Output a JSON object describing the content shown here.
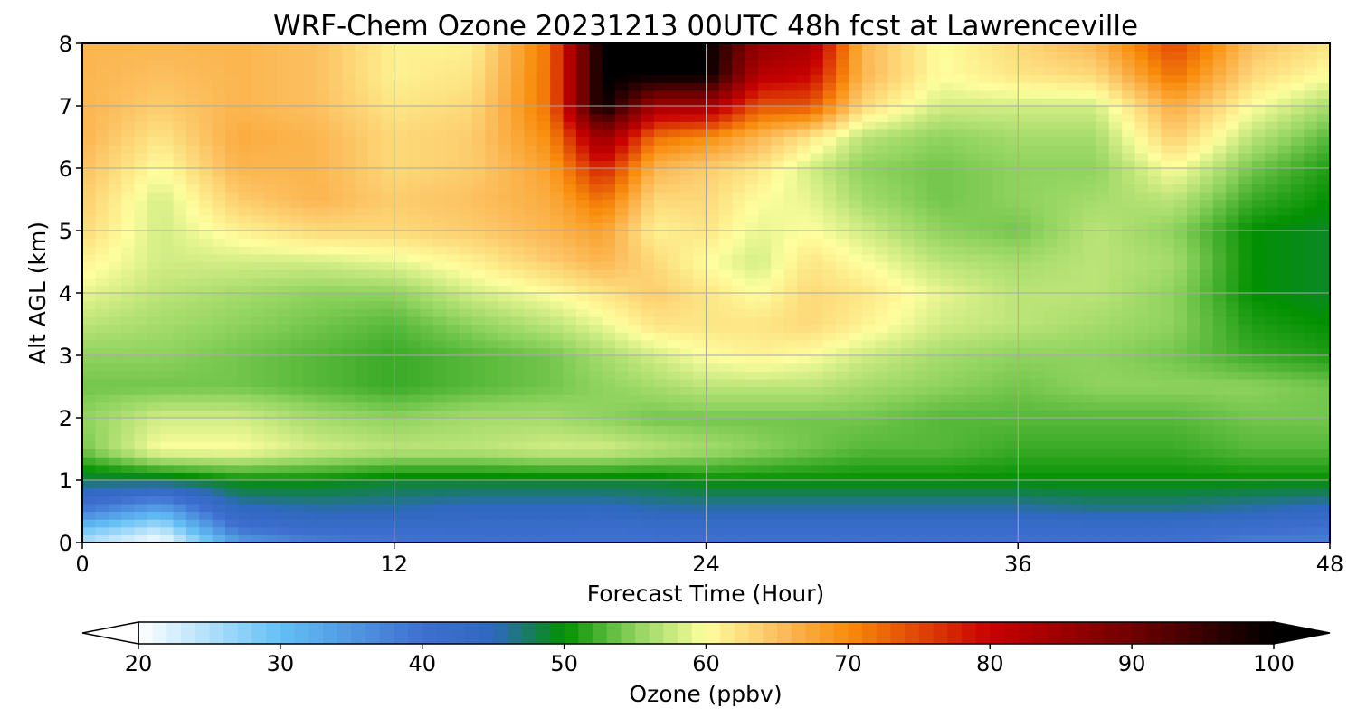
{
  "chart_data": {
    "type": "heatmap",
    "title": "WRF-Chem Ozone  20231213 00UTC 48h fcst at Lawrenceville",
    "xlabel": "Forecast Time (Hour)",
    "ylabel": "Alt AGL (km)",
    "xlim": [
      0,
      48
    ],
    "ylim": [
      0,
      8
    ],
    "x_ticks": [
      0,
      12,
      24,
      36,
      48
    ],
    "y_ticks": [
      0,
      1,
      2,
      3,
      4,
      5,
      6,
      7,
      8
    ],
    "grid": true,
    "x_hours": [
      0,
      3,
      6,
      9,
      12,
      15,
      18,
      20,
      22,
      24,
      26,
      28,
      30,
      33,
      36,
      39,
      42,
      45,
      48
    ],
    "z_km": [
      0,
      0.25,
      0.5,
      1,
      1.5,
      2,
      2.5,
      3,
      3.5,
      4,
      4.5,
      5,
      5.5,
      6,
      6.5,
      7,
      7.5,
      8
    ],
    "ozone_ppbv": [
      [
        25,
        20,
        34,
        38,
        39,
        40,
        40,
        40,
        40,
        40,
        40,
        40,
        40,
        40,
        40,
        40,
        40,
        38,
        38
      ],
      [
        30,
        25,
        40,
        42,
        42,
        42,
        42,
        41,
        42,
        42,
        42,
        42,
        42,
        42,
        42,
        42,
        42,
        41,
        40
      ],
      [
        38,
        32,
        44,
        45,
        45,
        44,
        44,
        44,
        45,
        45,
        45,
        45,
        45,
        45,
        45,
        46,
        46,
        45,
        44
      ],
      [
        48,
        48,
        50,
        50,
        49,
        49,
        49,
        49,
        49,
        50,
        50,
        50,
        50,
        50,
        50,
        50,
        50,
        50,
        50
      ],
      [
        54,
        60,
        60,
        58,
        57,
        57,
        58,
        58,
        57,
        56,
        55,
        54,
        53,
        53,
        52,
        52,
        52,
        53,
        53
      ],
      [
        55,
        58,
        58,
        56,
        55,
        56,
        56,
        55,
        54,
        54,
        54,
        54,
        54,
        53,
        53,
        53,
        53,
        54,
        54
      ],
      [
        54,
        54,
        54,
        53,
        52,
        53,
        54,
        55,
        56,
        57,
        57,
        57,
        56,
        55,
        54,
        55,
        55,
        55,
        54
      ],
      [
        55,
        55,
        54,
        53,
        52,
        53,
        54,
        56,
        58,
        60,
        61,
        60,
        58,
        56,
        55,
        55,
        54,
        52,
        51
      ],
      [
        57,
        56,
        55,
        54,
        53,
        55,
        57,
        59,
        62,
        62,
        62,
        63,
        61,
        58,
        57,
        56,
        55,
        51,
        50
      ],
      [
        59,
        57,
        56,
        55,
        55,
        58,
        60,
        62,
        64,
        62,
        60,
        63,
        62,
        59,
        57,
        57,
        55,
        50,
        49
      ],
      [
        61,
        58,
        58,
        58,
        59,
        61,
        64,
        66,
        63,
        60,
        58,
        62,
        60,
        57,
        56,
        57,
        56,
        50,
        49
      ],
      [
        63,
        58,
        61,
        63,
        63,
        64,
        66,
        68,
        61,
        62,
        59,
        60,
        58,
        55,
        54,
        57,
        55,
        50,
        49
      ],
      [
        64,
        58,
        64,
        66,
        64,
        65,
        67,
        72,
        63,
        63,
        60,
        59,
        56,
        54,
        55,
        56,
        57,
        52,
        50
      ],
      [
        65,
        60,
        66,
        66,
        63,
        64,
        68,
        78,
        66,
        64,
        62,
        58,
        55,
        54,
        55,
        55,
        60,
        54,
        51
      ],
      [
        66,
        62,
        67,
        66,
        63,
        64,
        70,
        86,
        72,
        70,
        66,
        62,
        57,
        55,
        56,
        56,
        64,
        57,
        53
      ],
      [
        66,
        64,
        66,
        65,
        62,
        63,
        72,
        100,
        84,
        84,
        74,
        74,
        63,
        58,
        58,
        58,
        67,
        60,
        56
      ],
      [
        66,
        65,
        66,
        65,
        61,
        62,
        72,
        100,
        100,
        100,
        82,
        80,
        66,
        60,
        62,
        63,
        72,
        63,
        60
      ],
      [
        66,
        66,
        66,
        65,
        61,
        61,
        72,
        100,
        100,
        100,
        86,
        84,
        66,
        60,
        63,
        66,
        75,
        65,
        62
      ]
    ],
    "colorbar": {
      "label": "Ozone  (ppbv)",
      "min": 20,
      "max": 100,
      "ticks": [
        20,
        30,
        40,
        50,
        60,
        70,
        80,
        90,
        100
      ],
      "extend": "both",
      "stops": [
        [
          20,
          "#ffffff"
        ],
        [
          30,
          "#63c0f5"
        ],
        [
          40,
          "#3f6fd0"
        ],
        [
          45,
          "#2f68c0"
        ],
        [
          50,
          "#029001"
        ],
        [
          55,
          "#8fd35e"
        ],
        [
          60,
          "#fefe9e"
        ],
        [
          65,
          "#fcc060"
        ],
        [
          70,
          "#f88c0b"
        ],
        [
          80,
          "#c80000"
        ],
        [
          90,
          "#700000"
        ],
        [
          100,
          "#000000"
        ]
      ]
    }
  }
}
